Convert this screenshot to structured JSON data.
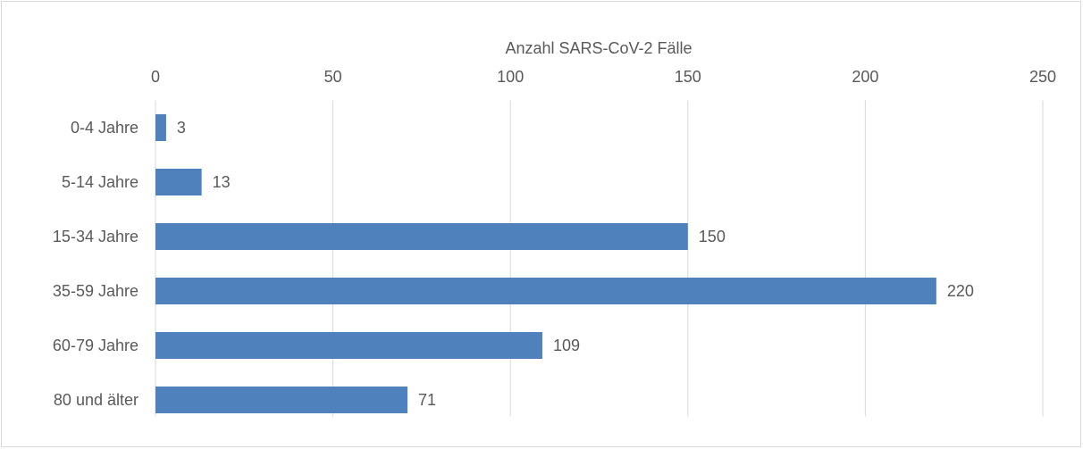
{
  "chart_data": {
    "type": "bar",
    "orientation": "horizontal",
    "x_label": "Anzahl SARS-CoV-2 Fälle",
    "categories": [
      "0-4 Jahre",
      "5-14 Jahre",
      "15-34 Jahre",
      "35-59 Jahre",
      "60-79 Jahre",
      "80 und älter"
    ],
    "values": [
      3,
      13,
      150,
      220,
      109,
      71
    ],
    "color": "#4f81bd",
    "xlim": [
      0,
      250
    ],
    "xticks": [
      0,
      50,
      100,
      150,
      200,
      250
    ],
    "grid": true
  }
}
